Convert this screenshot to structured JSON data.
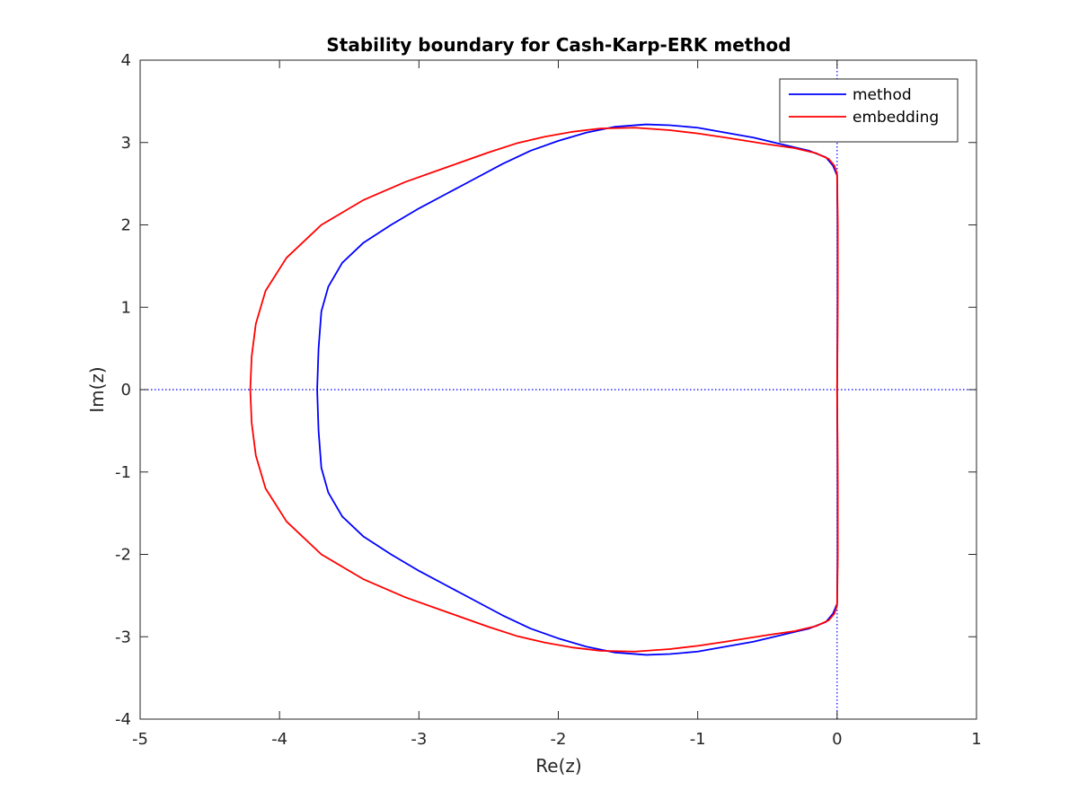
{
  "chart_data": {
    "type": "line",
    "title": "Stability boundary for Cash-Karp-ERK method",
    "xlabel": "Re(z)",
    "ylabel": "Im(z)",
    "xlim": [
      -5,
      1
    ],
    "ylim": [
      -4,
      4
    ],
    "xticks": [
      "-5",
      "-4",
      "-3",
      "-2",
      "-1",
      "0",
      "1"
    ],
    "yticks": [
      "-4",
      "-3",
      "-2",
      "-1",
      "0",
      "1",
      "2",
      "3",
      "4"
    ],
    "grid": false,
    "legend_position": "top-right",
    "reference_lines": [
      "x = 0 (dotted)",
      "y = 0 (dotted)"
    ],
    "series": [
      {
        "name": "method",
        "color": "#0000ff",
        "points": [
          [
            0,
            -2.6
          ],
          [
            -0.03,
            -2.72
          ],
          [
            -0.08,
            -2.82
          ],
          [
            -0.2,
            -2.9
          ],
          [
            -0.4,
            -2.98
          ],
          [
            -0.6,
            -3.06
          ],
          [
            -0.8,
            -3.12
          ],
          [
            -1.0,
            -3.18
          ],
          [
            -1.2,
            -3.21
          ],
          [
            -1.37,
            -3.22
          ],
          [
            -1.6,
            -3.19
          ],
          [
            -1.8,
            -3.12
          ],
          [
            -2.0,
            -3.02
          ],
          [
            -2.2,
            -2.9
          ],
          [
            -2.4,
            -2.74
          ],
          [
            -2.6,
            -2.56
          ],
          [
            -2.8,
            -2.38
          ],
          [
            -3.0,
            -2.2
          ],
          [
            -3.2,
            -2.0
          ],
          [
            -3.4,
            -1.78
          ],
          [
            -3.55,
            -1.54
          ],
          [
            -3.65,
            -1.25
          ],
          [
            -3.7,
            -0.95
          ],
          [
            -3.72,
            -0.5
          ],
          [
            -3.73,
            0
          ],
          [
            -3.72,
            0.5
          ],
          [
            -3.7,
            0.95
          ],
          [
            -3.65,
            1.25
          ],
          [
            -3.55,
            1.54
          ],
          [
            -3.4,
            1.78
          ],
          [
            -3.2,
            2.0
          ],
          [
            -3.0,
            2.2
          ],
          [
            -2.8,
            2.38
          ],
          [
            -2.6,
            2.56
          ],
          [
            -2.4,
            2.74
          ],
          [
            -2.2,
            2.9
          ],
          [
            -2.0,
            3.02
          ],
          [
            -1.8,
            3.12
          ],
          [
            -1.6,
            3.19
          ],
          [
            -1.37,
            3.22
          ],
          [
            -1.2,
            3.21
          ],
          [
            -1.0,
            3.18
          ],
          [
            -0.8,
            3.12
          ],
          [
            -0.6,
            3.06
          ],
          [
            -0.4,
            2.98
          ],
          [
            -0.2,
            2.9
          ],
          [
            -0.08,
            2.82
          ],
          [
            -0.03,
            2.72
          ],
          [
            0,
            2.6
          ],
          [
            0.003,
            2.0
          ],
          [
            0.003,
            1.2
          ],
          [
            0.002,
            0.6
          ],
          [
            0,
            0
          ],
          [
            0.002,
            -0.6
          ],
          [
            0.003,
            -1.2
          ],
          [
            0.003,
            -2.0
          ],
          [
            0,
            -2.6
          ]
        ]
      },
      {
        "name": "embedding",
        "color": "#ff0000",
        "points": [
          [
            0,
            -2.62
          ],
          [
            -0.02,
            -2.72
          ],
          [
            -0.06,
            -2.8
          ],
          [
            -0.15,
            -2.87
          ],
          [
            -0.3,
            -2.93
          ],
          [
            -0.5,
            -2.98
          ],
          [
            -0.8,
            -3.06
          ],
          [
            -1.0,
            -3.11
          ],
          [
            -1.2,
            -3.15
          ],
          [
            -1.45,
            -3.18
          ],
          [
            -1.7,
            -3.17
          ],
          [
            -1.9,
            -3.13
          ],
          [
            -2.1,
            -3.07
          ],
          [
            -2.3,
            -2.99
          ],
          [
            -2.5,
            -2.88
          ],
          [
            -2.8,
            -2.7
          ],
          [
            -3.1,
            -2.52
          ],
          [
            -3.4,
            -2.3
          ],
          [
            -3.7,
            -2.0
          ],
          [
            -3.95,
            -1.6
          ],
          [
            -4.1,
            -1.2
          ],
          [
            -4.17,
            -0.8
          ],
          [
            -4.2,
            -0.4
          ],
          [
            -4.21,
            0
          ],
          [
            -4.2,
            0.4
          ],
          [
            -4.17,
            0.8
          ],
          [
            -4.1,
            1.2
          ],
          [
            -3.95,
            1.6
          ],
          [
            -3.7,
            2.0
          ],
          [
            -3.4,
            2.3
          ],
          [
            -3.1,
            2.52
          ],
          [
            -2.8,
            2.7
          ],
          [
            -2.5,
            2.88
          ],
          [
            -2.3,
            2.99
          ],
          [
            -2.1,
            3.07
          ],
          [
            -1.9,
            3.13
          ],
          [
            -1.7,
            3.17
          ],
          [
            -1.45,
            3.18
          ],
          [
            -1.2,
            3.15
          ],
          [
            -1.0,
            3.11
          ],
          [
            -0.8,
            3.06
          ],
          [
            -0.5,
            2.98
          ],
          [
            -0.3,
            2.93
          ],
          [
            -0.15,
            2.87
          ],
          [
            -0.06,
            2.8
          ],
          [
            -0.02,
            2.72
          ],
          [
            0,
            2.62
          ],
          [
            0.005,
            2.0
          ],
          [
            0.005,
            1.2
          ],
          [
            0.003,
            0.6
          ],
          [
            0,
            0
          ],
          [
            0.003,
            -0.6
          ],
          [
            0.005,
            -1.2
          ],
          [
            0.005,
            -2.0
          ],
          [
            0,
            -2.62
          ]
        ]
      }
    ]
  }
}
